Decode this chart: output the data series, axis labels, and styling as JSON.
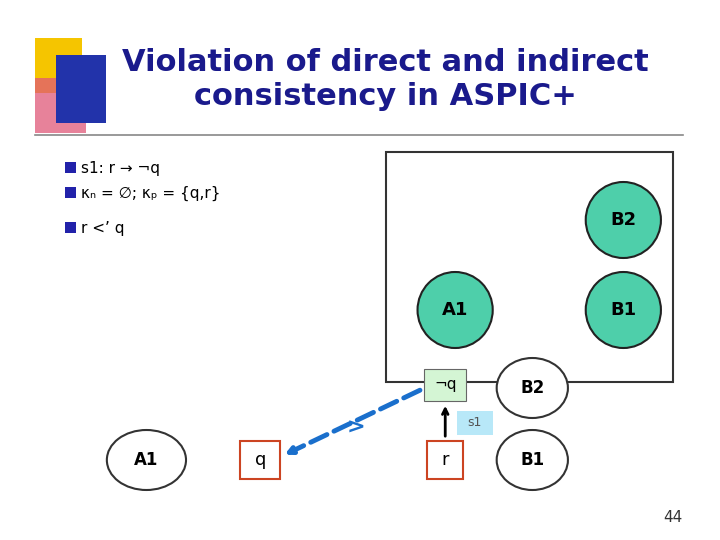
{
  "title_line1": "Violation of direct and indirect",
  "title_line2": "consistency in ASPIC+",
  "title_color": "#1a1a8c",
  "title_fontsize": 22,
  "bg_color": "#ffffff",
  "bullet_color": "#2222aa",
  "bullet_texts": [
    "s1: r → ¬q",
    "κₙ = ∅; κₚ = {q,r}",
    "r <’ q"
  ],
  "ellipse_color": "#4ecfaa",
  "page_number": "44"
}
